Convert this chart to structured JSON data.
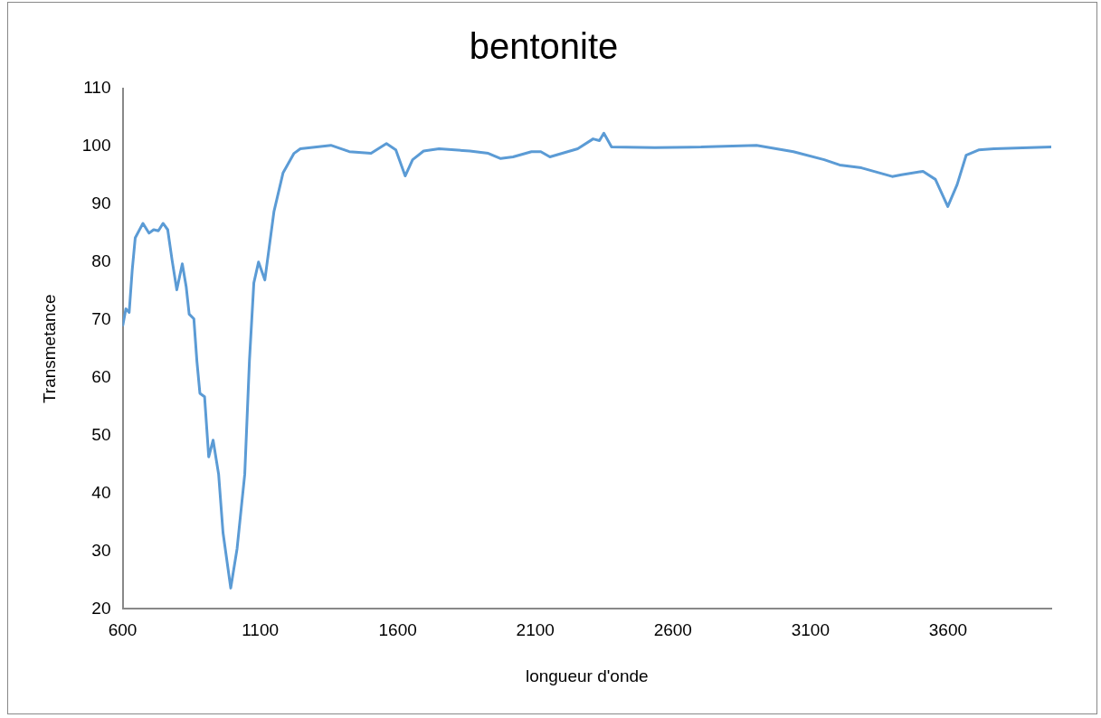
{
  "chart_data": {
    "type": "line",
    "title": "bentonite",
    "xlabel": "longueur d'onde",
    "ylabel": "Transmetance",
    "xlim": [
      600,
      3975
    ],
    "xticks": [
      600,
      1100,
      1600,
      2100,
      2600,
      3100,
      3600
    ],
    "ylim": [
      20,
      110
    ],
    "yticks": [
      20,
      30,
      40,
      50,
      60,
      70,
      80,
      90,
      100,
      110
    ],
    "grid": false,
    "legend": false,
    "marker": "none",
    "line_style": "solid",
    "series": [
      {
        "color": "#5b9bd5",
        "x": [
          601,
          612,
          624,
          635,
          646,
          674,
          696,
          713,
          730,
          747,
          764,
          780,
          797,
          817,
          831,
          842,
          859,
          870,
          881,
          898,
          913,
          929,
          949,
          965,
          993,
          1016,
          1044,
          1061,
          1077,
          1094,
          1117,
          1150,
          1183,
          1223,
          1246,
          1357,
          1424,
          1503,
          1559,
          1593,
          1627,
          1654,
          1694,
          1750,
          1862,
          1929,
          1974,
          2019,
          2086,
          2120,
          2153,
          2254,
          2310,
          2333,
          2349,
          2377,
          2534,
          2702,
          2758,
          2904,
          3038,
          3150,
          3206,
          3285,
          3397,
          3431,
          3509,
          3554,
          3599,
          3633,
          3666,
          3711,
          3767,
          3975
        ],
        "values": [
          69.1,
          71.9,
          71.3,
          78.6,
          84.2,
          86.7,
          85.0,
          85.6,
          85.4,
          86.7,
          85.6,
          80.3,
          75.2,
          79.7,
          75.8,
          71.0,
          70.2,
          62.9,
          57.3,
          56.7,
          46.3,
          49.2,
          43.3,
          33.2,
          23.6,
          30.4,
          43.3,
          62.9,
          76.4,
          80.0,
          76.9,
          88.7,
          95.4,
          98.8,
          99.6,
          100.2,
          99.1,
          98.8,
          100.5,
          99.4,
          94.9,
          97.7,
          99.2,
          99.6,
          99.2,
          98.8,
          97.9,
          98.2,
          99.1,
          99.1,
          98.2,
          99.6,
          101.3,
          101.0,
          102.3,
          99.9,
          99.8,
          99.9,
          100.0,
          100.2,
          99.1,
          97.7,
          96.8,
          96.3,
          94.8,
          95.1,
          95.7,
          94.3,
          89.6,
          93.4,
          98.5,
          99.4,
          99.6,
          99.9
        ]
      }
    ]
  }
}
